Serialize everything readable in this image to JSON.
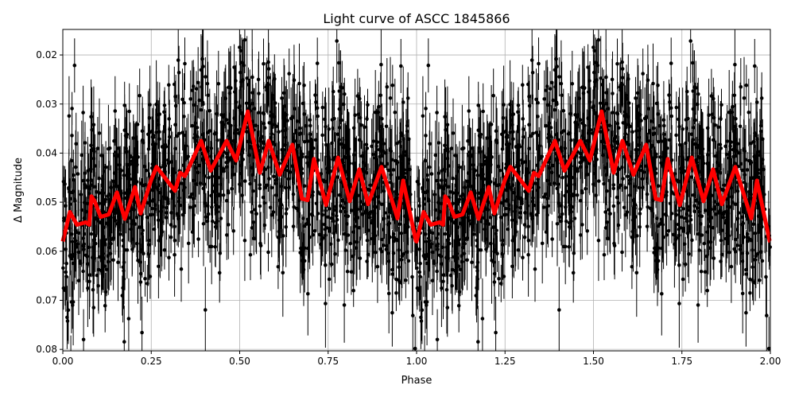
{
  "chart_data": {
    "type": "scatter",
    "title": "Light curve of ASCC 1845866",
    "xlabel": "Phase",
    "ylabel": "Δ Magnitude",
    "xlim": [
      0,
      2
    ],
    "ylim": [
      0.0803,
      0.0148
    ],
    "y_inverted": true,
    "grid": true,
    "x_ticks": [
      "0.00",
      "0.25",
      "0.50",
      "0.75",
      "1.00",
      "1.25",
      "1.50",
      "1.75",
      "2.00"
    ],
    "y_ticks": [
      "0.02",
      "0.03",
      "0.04",
      "0.05",
      "0.06",
      "0.07",
      "0.08"
    ],
    "colors": {
      "points": "#000000",
      "model": "#ff0000",
      "grid": "#b0b0b0"
    },
    "series": [
      {
        "kind": "errorbar-points",
        "color": "#000000",
        "description_of_spread": "phase-folded measurements with vertical error bars, scattered roughly 0.015–0.08 around the model"
      },
      {
        "kind": "model-line",
        "color": "#ff0000",
        "repeats_every_phase": 1,
        "phase": [
          0.0,
          0.02,
          0.04,
          0.065,
          0.075,
          0.081,
          0.09,
          0.107,
          0.13,
          0.153,
          0.175,
          0.204,
          0.22,
          0.249,
          0.265,
          0.317,
          0.332,
          0.345,
          0.391,
          0.418,
          0.463,
          0.49,
          0.523,
          0.557,
          0.582,
          0.613,
          0.649,
          0.676,
          0.692,
          0.71,
          0.744,
          0.778,
          0.811,
          0.838,
          0.863,
          0.901,
          0.946,
          0.962,
          0.998,
          1.0
        ],
        "magnitude": [
          0.058,
          0.052,
          0.0546,
          0.0541,
          0.0546,
          0.0488,
          0.0498,
          0.053,
          0.0525,
          0.048,
          0.0534,
          0.0469,
          0.0523,
          0.0456,
          0.0428,
          0.0477,
          0.044,
          0.0447,
          0.0375,
          0.0436,
          0.0375,
          0.0415,
          0.0315,
          0.044,
          0.0375,
          0.0444,
          0.0383,
          0.0493,
          0.0496,
          0.0412,
          0.0506,
          0.0409,
          0.0498,
          0.0433,
          0.0504,
          0.0428,
          0.0533,
          0.0456,
          0.0579,
          0.058
        ]
      }
    ]
  }
}
